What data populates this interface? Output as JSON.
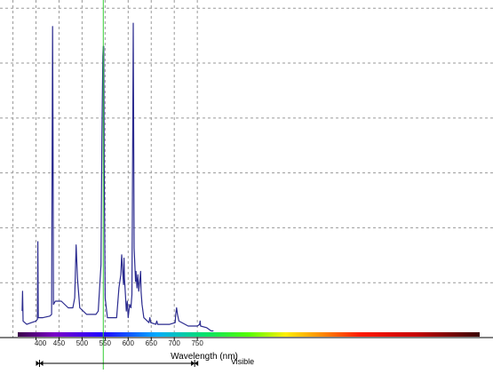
{
  "chart_data": {
    "type": "line",
    "title": "",
    "xlabel": "Wavelength (nm)",
    "ylabel": "",
    "xlim": [
      370,
      785
    ],
    "ylim": [
      -2,
      100
    ],
    "x_ticks": [
      "450",
      "500",
      "550",
      "600",
      "650",
      "700",
      "750"
    ],
    "x_tick_values": [
      450,
      500,
      550,
      600,
      650,
      700,
      750
    ],
    "edge_tick_values": [
      400
    ],
    "partial_tick_labels": [
      "400",
      "750"
    ],
    "visible_band_label": "Visible",
    "visible_band_range": [
      400,
      750
    ],
    "cursor_wavelength": 546,
    "grid": true,
    "colors": {
      "trace": "#2b2b8f",
      "cursor": "#33cc33",
      "grid": "#9a9a9a",
      "axis": "#000000"
    },
    "series": [
      {
        "values": [
          [
            370,
            6
          ],
          [
            371,
            12
          ],
          [
            372,
            3
          ],
          [
            380,
            2
          ],
          [
            390,
            2.5
          ],
          [
            400,
            3
          ],
          [
            403,
            3.5
          ],
          [
            404,
            27
          ],
          [
            405,
            4
          ],
          [
            415,
            4
          ],
          [
            430,
            4.5
          ],
          [
            434,
            5
          ],
          [
            435,
            55
          ],
          [
            436,
            92
          ],
          [
            437,
            60
          ],
          [
            438,
            8
          ],
          [
            442,
            9
          ],
          [
            455,
            9
          ],
          [
            470,
            7
          ],
          [
            480,
            7
          ],
          [
            484,
            10
          ],
          [
            487,
            26
          ],
          [
            490,
            16
          ],
          [
            495,
            7
          ],
          [
            510,
            5
          ],
          [
            530,
            5
          ],
          [
            535,
            6
          ],
          [
            541,
            20
          ],
          [
            543,
            58
          ],
          [
            545,
            83
          ],
          [
            546,
            86
          ],
          [
            547,
            86
          ],
          [
            548,
            50
          ],
          [
            550,
            10
          ],
          [
            555,
            4
          ],
          [
            575,
            4
          ],
          [
            580,
            13
          ],
          [
            584,
            17
          ],
          [
            586,
            23
          ],
          [
            588,
            18
          ],
          [
            590,
            14
          ],
          [
            591,
            22
          ],
          [
            592,
            16
          ],
          [
            594,
            11
          ],
          [
            596,
            6
          ],
          [
            598,
            9
          ],
          [
            600,
            4
          ],
          [
            603,
            8
          ],
          [
            606,
            7
          ],
          [
            608,
            11
          ],
          [
            609,
            35
          ],
          [
            611,
            93
          ],
          [
            612,
            60
          ],
          [
            613,
            25
          ],
          [
            616,
            15
          ],
          [
            617,
            18
          ],
          [
            619,
            13
          ],
          [
            621,
            17
          ],
          [
            623,
            12
          ],
          [
            625,
            15
          ],
          [
            627,
            18
          ],
          [
            628,
            12
          ],
          [
            630,
            8
          ],
          [
            634,
            4
          ],
          [
            645,
            2.5
          ],
          [
            647,
            4
          ],
          [
            649,
            2.5
          ],
          [
            660,
            2
          ],
          [
            662,
            3
          ],
          [
            664,
            2
          ],
          [
            690,
            2
          ],
          [
            702,
            2.5
          ],
          [
            703,
            5
          ],
          [
            705,
            7
          ],
          [
            707,
            5
          ],
          [
            710,
            3
          ],
          [
            730,
            1.5
          ],
          [
            750,
            1.5
          ],
          [
            755,
            2
          ],
          [
            756,
            3
          ],
          [
            757,
            1.5
          ],
          [
            770,
            1
          ],
          [
            780,
            0
          ],
          [
            785,
            0
          ]
        ]
      }
    ]
  }
}
